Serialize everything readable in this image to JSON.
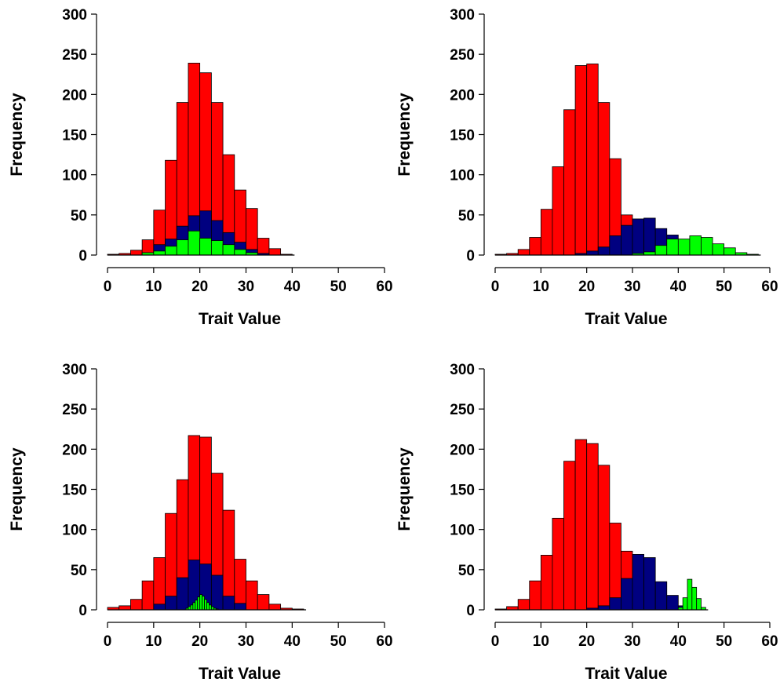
{
  "colors": {
    "red": "#ff0000",
    "blue": "#000080",
    "green": "#00ff00"
  },
  "chart_data": [
    {
      "type": "bar",
      "panel": "top-left",
      "xlabel": "Trait Value",
      "ylabel": "Frequency",
      "xlim": [
        0,
        60
      ],
      "ylim": [
        0,
        300
      ],
      "x_ticks": [
        "0",
        "10",
        "20",
        "30",
        "40",
        "50",
        "60"
      ],
      "y_ticks": [
        "0",
        "50",
        "100",
        "150",
        "200",
        "250",
        "300"
      ],
      "grid": false,
      "series": [
        {
          "color": "red",
          "bin_width": 2.5,
          "bins": [
            [
              0,
              1
            ],
            [
              2.5,
              2
            ],
            [
              5,
              6
            ],
            [
              7.5,
              19
            ],
            [
              10,
              56
            ],
            [
              12.5,
              118
            ],
            [
              15,
              190
            ],
            [
              17.5,
              239
            ],
            [
              20,
              227
            ],
            [
              22.5,
              190
            ],
            [
              25,
              125
            ],
            [
              27.5,
              81
            ],
            [
              30,
              58
            ],
            [
              32.5,
              21
            ],
            [
              35,
              8
            ],
            [
              37.5,
              1
            ]
          ]
        },
        {
          "color": "blue",
          "bin_width": 2.5,
          "bins": [
            [
              7.5,
              3
            ],
            [
              10,
              13
            ],
            [
              12.5,
              20
            ],
            [
              15,
              36
            ],
            [
              17.5,
              49
            ],
            [
              20,
              55
            ],
            [
              22.5,
              43
            ],
            [
              25,
              28
            ],
            [
              27.5,
              16
            ],
            [
              30,
              7
            ],
            [
              32.5,
              2
            ]
          ]
        },
        {
          "color": "green",
          "bin_width": 2.5,
          "bins": [
            [
              7.5,
              3
            ],
            [
              10,
              5
            ],
            [
              12.5,
              11
            ],
            [
              15,
              19
            ],
            [
              17.5,
              30
            ],
            [
              20,
              21
            ],
            [
              22.5,
              18
            ],
            [
              25,
              13
            ],
            [
              27.5,
              7
            ],
            [
              30,
              3
            ]
          ]
        }
      ]
    },
    {
      "type": "bar",
      "panel": "top-right",
      "xlabel": "Trait Value",
      "ylabel": "Frequency",
      "xlim": [
        0,
        60
      ],
      "ylim": [
        0,
        300
      ],
      "x_ticks": [
        "0",
        "10",
        "20",
        "30",
        "40",
        "50",
        "60"
      ],
      "y_ticks": [
        "0",
        "50",
        "100",
        "150",
        "200",
        "250",
        "300"
      ],
      "grid": false,
      "series": [
        {
          "color": "red",
          "bin_width": 2.5,
          "bins": [
            [
              0,
              1
            ],
            [
              2.5,
              2
            ],
            [
              5,
              7
            ],
            [
              7.5,
              22
            ],
            [
              10,
              57
            ],
            [
              12.5,
              110
            ],
            [
              15,
              181
            ],
            [
              17.5,
              236
            ],
            [
              20,
              238
            ],
            [
              22.5,
              190
            ],
            [
              25,
              120
            ],
            [
              27.5,
              50
            ],
            [
              30,
              33
            ],
            [
              32.5,
              25
            ],
            [
              35,
              19
            ],
            [
              37.5,
              8
            ],
            [
              40,
              5
            ],
            [
              42.5,
              2
            ]
          ]
        },
        {
          "color": "blue",
          "bin_width": 2.5,
          "bins": [
            [
              17.5,
              2
            ],
            [
              20,
              5
            ],
            [
              22.5,
              10
            ],
            [
              25,
              24
            ],
            [
              27.5,
              37
            ],
            [
              30,
              45
            ],
            [
              32.5,
              46
            ],
            [
              35,
              33
            ],
            [
              37.5,
              25
            ],
            [
              40,
              15
            ],
            [
              42.5,
              7
            ],
            [
              45,
              2
            ]
          ]
        },
        {
          "color": "green",
          "bin_width": 2.5,
          "bins": [
            [
              30,
              2
            ],
            [
              32.5,
              4
            ],
            [
              35,
              12
            ],
            [
              37.5,
              20
            ],
            [
              40,
              20
            ],
            [
              42.5,
              24
            ],
            [
              45,
              22
            ],
            [
              47.5,
              14
            ],
            [
              50,
              9
            ],
            [
              52.5,
              3
            ],
            [
              55,
              1
            ]
          ]
        }
      ]
    },
    {
      "type": "bar",
      "panel": "bottom-left",
      "xlabel": "Trait Value",
      "ylabel": "Frequency",
      "xlim": [
        0,
        60
      ],
      "ylim": [
        0,
        300
      ],
      "x_ticks": [
        "0",
        "10",
        "20",
        "30",
        "40",
        "50",
        "60"
      ],
      "y_ticks": [
        "0",
        "50",
        "100",
        "150",
        "200",
        "250",
        "300"
      ],
      "grid": false,
      "series": [
        {
          "color": "red",
          "bin_width": 2.5,
          "bins": [
            [
              0,
              3
            ],
            [
              2.5,
              5
            ],
            [
              5,
              13
            ],
            [
              7.5,
              36
            ],
            [
              10,
              65
            ],
            [
              12.5,
              120
            ],
            [
              15,
              162
            ],
            [
              17.5,
              217
            ],
            [
              20,
              215
            ],
            [
              22.5,
              170
            ],
            [
              25,
              124
            ],
            [
              27.5,
              63
            ],
            [
              30,
              36
            ],
            [
              32.5,
              19
            ],
            [
              35,
              7
            ],
            [
              37.5,
              2
            ],
            [
              40,
              1
            ]
          ]
        },
        {
          "color": "blue",
          "bin_width": 2.5,
          "bins": [
            [
              10,
              7
            ],
            [
              12.5,
              17
            ],
            [
              15,
              40
            ],
            [
              17.5,
              62
            ],
            [
              20,
              57
            ],
            [
              22.5,
              43
            ],
            [
              25,
              17
            ],
            [
              27.5,
              8
            ]
          ]
        },
        {
          "color": "green",
          "bin_width": 0.5,
          "bins": [
            [
              17,
              2
            ],
            [
              17.5,
              4
            ],
            [
              18,
              6
            ],
            [
              18.5,
              9
            ],
            [
              19,
              12
            ],
            [
              19.5,
              16
            ],
            [
              20,
              19
            ],
            [
              20.5,
              17
            ],
            [
              21,
              13
            ],
            [
              21.5,
              9
            ],
            [
              22,
              6
            ],
            [
              22.5,
              4
            ],
            [
              23,
              2
            ],
            [
              23.5,
              1
            ]
          ]
        }
      ]
    },
    {
      "type": "bar",
      "panel": "bottom-right",
      "xlabel": "Trait Value",
      "ylabel": "Frequency",
      "xlim": [
        0,
        60
      ],
      "ylim": [
        0,
        300
      ],
      "x_ticks": [
        "0",
        "10",
        "20",
        "30",
        "40",
        "50",
        "60"
      ],
      "y_ticks": [
        "0",
        "50",
        "100",
        "150",
        "200",
        "250",
        "300"
      ],
      "grid": false,
      "series": [
        {
          "color": "red",
          "bin_width": 2.5,
          "bins": [
            [
              0,
              1
            ],
            [
              2.5,
              4
            ],
            [
              5,
              13
            ],
            [
              7.5,
              36
            ],
            [
              10,
              68
            ],
            [
              12.5,
              114
            ],
            [
              15,
              185
            ],
            [
              17.5,
              212
            ],
            [
              20,
              207
            ],
            [
              22.5,
              180
            ],
            [
              25,
              108
            ],
            [
              27.5,
              73
            ],
            [
              30,
              35
            ],
            [
              32.5,
              15
            ],
            [
              35,
              6
            ],
            [
              37.5,
              2
            ]
          ]
        },
        {
          "color": "blue",
          "bin_width": 2.5,
          "bins": [
            [
              20,
              2
            ],
            [
              22.5,
              5
            ],
            [
              25,
              15
            ],
            [
              27.5,
              39
            ],
            [
              30,
              69
            ],
            [
              32.5,
              65
            ],
            [
              35,
              35
            ],
            [
              37.5,
              18
            ],
            [
              40,
              5
            ],
            [
              42.5,
              2
            ]
          ]
        },
        {
          "color": "green",
          "bin_width": 1,
          "bins": [
            [
              40,
              3
            ],
            [
              41,
              15
            ],
            [
              42,
              38
            ],
            [
              43,
              28
            ],
            [
              44,
              14
            ],
            [
              45,
              3
            ]
          ]
        }
      ]
    }
  ]
}
